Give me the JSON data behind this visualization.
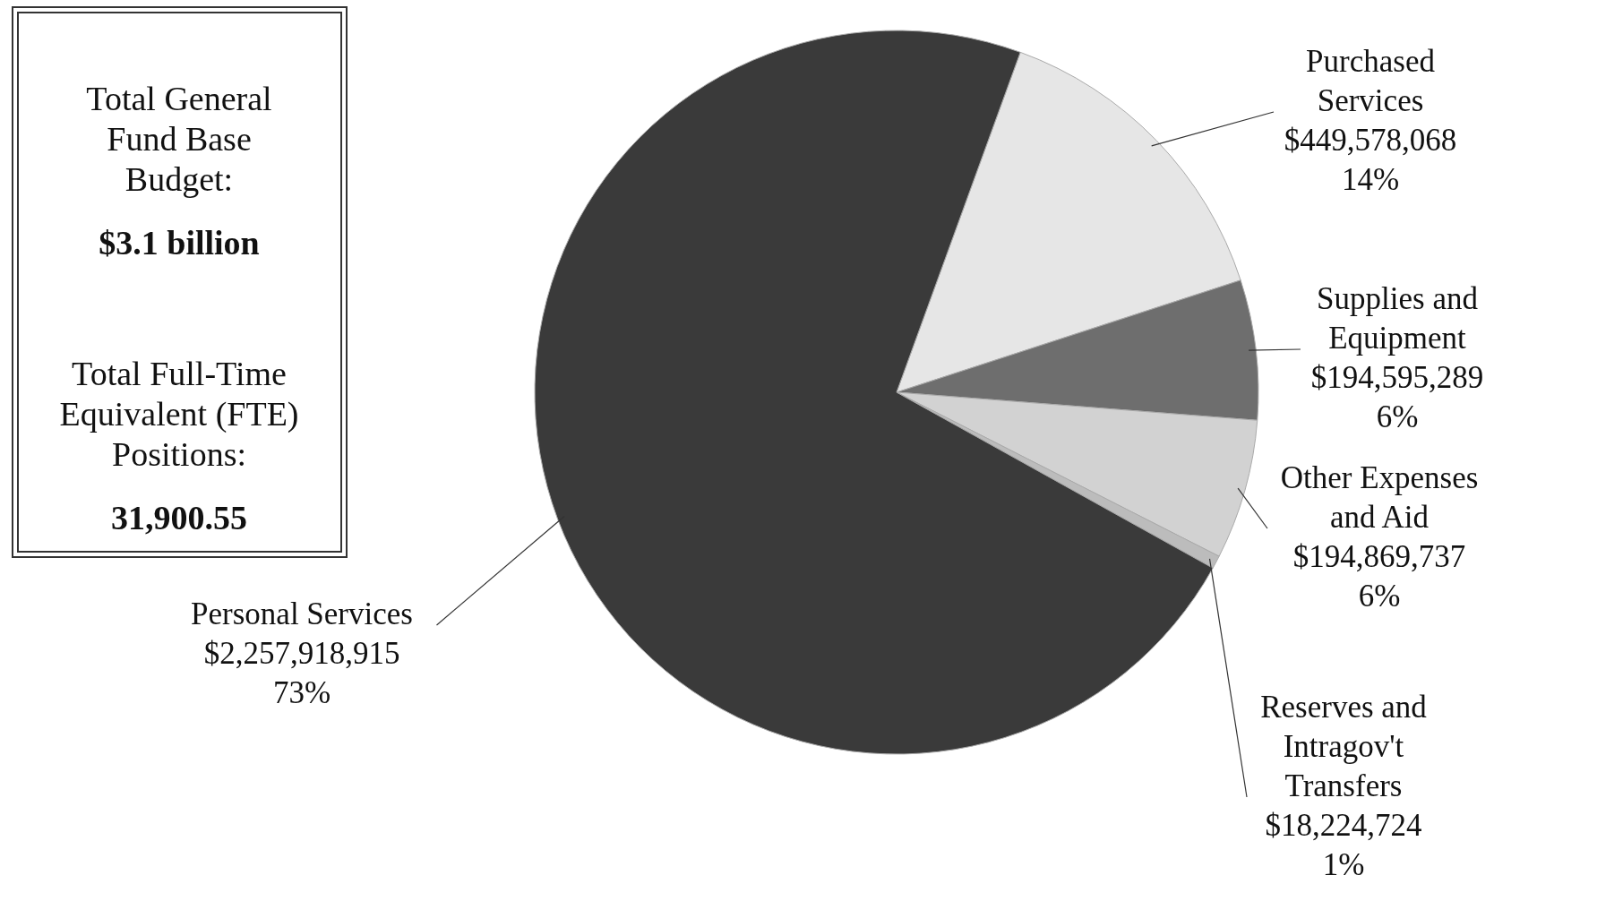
{
  "chart_data": {
    "type": "pie",
    "categories": [
      "Purchased Services",
      "Supplies and Equipment",
      "Other Expenses and Aid",
      "Reserves and Intragov't Transfers",
      "Personal Services"
    ],
    "values": [
      449578068,
      194595289,
      194869737,
      18224724,
      2257918915
    ],
    "value_labels": [
      "$449,578,068\n14%",
      "$194,595,289\n6%",
      "$194,869,737\n6%",
      "$18,224,724\n1%",
      "$2,257,918,915\n73%"
    ],
    "colors": [
      "#e6e6e6",
      "#6e6e6e",
      "#d2d2d2",
      "#bcbcbc",
      "#3a3a3a"
    ],
    "annotations": [
      "Total General Fund Base Budget:",
      "$3.1 billion",
      "Total Full-Time Equivalent (FTE) Positions:",
      "31,900.55"
    ]
  }
}
